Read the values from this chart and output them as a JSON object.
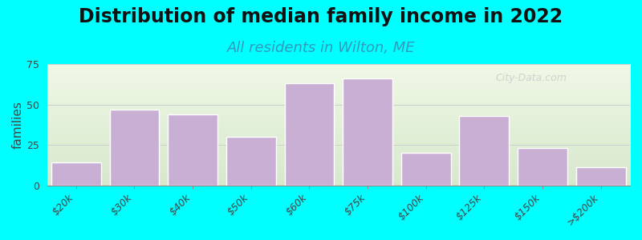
{
  "title": "Distribution of median family income in 2022",
  "subtitle": "All residents in Wilton, ME",
  "ylabel": "families",
  "categories": [
    "$20k",
    "$30k",
    "$40k",
    "$50k",
    "$60k",
    "$75k",
    "$100k",
    "$125k",
    "$150k",
    ">$200k"
  ],
  "values": [
    14,
    47,
    44,
    30,
    63,
    66,
    20,
    43,
    23,
    11
  ],
  "bar_color": "#c9afd4",
  "bar_edge_color": "#ffffff",
  "background_color": "#00ffff",
  "ylim": [
    0,
    75
  ],
  "yticks": [
    0,
    25,
    50,
    75
  ],
  "title_fontsize": 17,
  "subtitle_fontsize": 13,
  "ylabel_fontsize": 11,
  "tick_fontsize": 9,
  "watermark_text": "City-Data.com"
}
